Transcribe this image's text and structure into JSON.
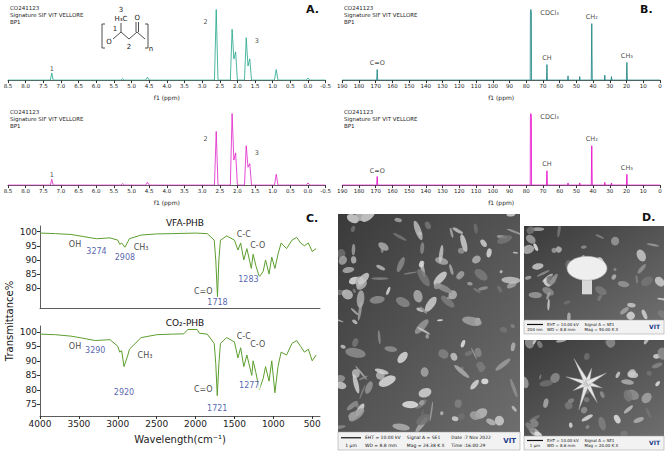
{
  "chart_data": [
    {
      "type": "line",
      "panel_label": "A.",
      "header": [
        "CO241123",
        "Signature SIF VIT VELLORE",
        "BP1"
      ],
      "structure": {
        "numbering": [
          "3",
          "1",
          "2"
        ],
        "atoms": [
          "H₃C",
          "O",
          "O"
        ],
        "repeat": "n"
      },
      "x": [
        8.5,
        7.3,
        7.26,
        7.22,
        5.3,
        5.25,
        5.2,
        4.6,
        4.55,
        4.5,
        2.65,
        2.6,
        2.55,
        2.2,
        2.15,
        2.1,
        2.05,
        2.0,
        1.8,
        1.75,
        1.7,
        1.65,
        1.6,
        0.95,
        0.9,
        0.85,
        0.05,
        0.0,
        -0.05,
        -0.5
      ],
      "values": [
        0,
        0,
        10,
        0,
        0,
        2,
        0,
        0,
        4,
        0,
        0,
        100,
        0,
        0,
        72,
        30,
        40,
        0,
        0,
        60,
        20,
        30,
        0,
        0,
        15,
        0,
        0,
        3,
        0,
        0
      ],
      "color": "#1fa58a",
      "xlabel": "f1 (ppm)",
      "xlim": [
        8.5,
        -0.5
      ],
      "xticks": [
        8.5,
        {
          "value": 8,
          "label": "8.0"
        },
        7.5,
        {
          "value": 7,
          "label": "7.0"
        },
        6.5,
        {
          "value": 6,
          "label": "6.0"
        },
        5.5,
        {
          "value": 5,
          "label": "5.0"
        },
        4.5,
        {
          "value": 4,
          "label": "4.0"
        },
        3.5,
        {
          "value": 3,
          "label": "3.0"
        },
        2.5,
        {
          "value": 2,
          "label": "2.0"
        },
        1.5,
        {
          "value": 1,
          "label": "1.0"
        },
        0.5,
        {
          "value": 0,
          "label": "0.0"
        },
        -0.5
      ],
      "ylim": [
        0,
        105
      ],
      "tick_labels": "x",
      "grid": false,
      "annotations": [
        {
          "text": "1",
          "x": 7.26,
          "y": 16
        },
        {
          "text": "2",
          "x": 2.9,
          "y": 82
        },
        {
          "text": "3",
          "x": 1.45,
          "y": 55
        }
      ]
    },
    {
      "type": "line",
      "header": [
        "CO241123",
        "Signature SIF VIT VELLORE",
        "BP1"
      ],
      "x": [
        8.5,
        7.3,
        7.26,
        7.22,
        5.3,
        5.25,
        5.2,
        4.6,
        4.55,
        4.5,
        2.65,
        2.6,
        2.55,
        2.2,
        2.15,
        2.1,
        2.05,
        2.0,
        1.8,
        1.75,
        1.7,
        1.65,
        1.6,
        0.95,
        0.9,
        0.85,
        0.05,
        0.0,
        -0.05,
        -0.5
      ],
      "values": [
        0,
        0,
        8,
        0,
        0,
        2,
        0,
        0,
        4,
        0,
        0,
        75,
        0,
        0,
        100,
        35,
        45,
        0,
        0,
        55,
        25,
        30,
        0,
        0,
        15,
        0,
        0,
        3,
        0,
        0
      ],
      "color": "#e020c8",
      "xlabel": "f1 (ppm)",
      "xlim": [
        8.5,
        -0.5
      ],
      "xticks": [
        8.5,
        {
          "value": 8,
          "label": "8.0"
        },
        7.5,
        {
          "value": 7,
          "label": "7.0"
        },
        6.5,
        {
          "value": 6,
          "label": "6.0"
        },
        5.5,
        {
          "value": 5,
          "label": "5.0"
        },
        4.5,
        {
          "value": 4,
          "label": "4.0"
        },
        3.5,
        {
          "value": 3,
          "label": "3.0"
        },
        2.5,
        {
          "value": 2,
          "label": "2.0"
        },
        1.5,
        {
          "value": 1,
          "label": "1.0"
        },
        0.5,
        {
          "value": 0,
          "label": "0.0"
        },
        -0.5
      ],
      "ylim": [
        0,
        105
      ],
      "tick_labels": "x",
      "grid": false,
      "annotations": [
        {
          "text": "1",
          "x": 7.26,
          "y": 14
        },
        {
          "text": "2",
          "x": 2.9,
          "y": 65
        },
        {
          "text": "3",
          "x": 1.45,
          "y": 45
        }
      ]
    },
    {
      "type": "line",
      "panel_label": "B.",
      "header": [
        "CO241123",
        "Signature SIF VIT VELLORE",
        "BP1"
      ],
      "x": [
        190,
        169.4,
        169.1,
        168.8,
        77.6,
        77.5,
        77.2,
        76.9,
        76.8,
        67.9,
        67.6,
        67.3,
        55.2,
        55,
        54.8,
        48.2,
        48,
        47.8,
        41.1,
        40.8,
        40.5,
        33.2,
        33,
        32.8,
        29.2,
        29,
        28.8,
        20.1,
        19.8,
        19.5,
        0
      ],
      "values": [
        0,
        0,
        15,
        0,
        0,
        95,
        100,
        95,
        0,
        0,
        22,
        0,
        0,
        6,
        0,
        0,
        5,
        0,
        0,
        80,
        0,
        0,
        7,
        0,
        0,
        5,
        0,
        0,
        25,
        0,
        0
      ],
      "color": "#127f7f",
      "xlabel": "f1 (ppm)",
      "xlim": [
        190,
        0
      ],
      "xticks": [
        190,
        180,
        170,
        160,
        150,
        140,
        130,
        120,
        110,
        100,
        90,
        80,
        70,
        60,
        50,
        40,
        30,
        20,
        10,
        0
      ],
      "ylim": [
        0,
        105
      ],
      "tick_labels": "x",
      "grid": false,
      "annotations": [
        {
          "text": "C=O",
          "x": 169.1,
          "y": 24
        },
        {
          "text": "CDCl₃",
          "x": 66,
          "y": 95
        },
        {
          "text": "CH",
          "x": 67.6,
          "y": 31
        },
        {
          "text": "CH₂",
          "x": 40.8,
          "y": 89
        },
        {
          "text": "CH₃",
          "x": 19.8,
          "y": 34
        }
      ]
    },
    {
      "type": "line",
      "header": [
        "CO241123",
        "Signature SIF VIT VELLORE",
        "BP1"
      ],
      "x": [
        190,
        169.4,
        169.1,
        168.8,
        77.6,
        77.5,
        77.2,
        76.9,
        76.8,
        67.9,
        67.6,
        67.3,
        55.2,
        55,
        54.8,
        48.2,
        48,
        47.8,
        41.1,
        40.8,
        40.5,
        33.2,
        33,
        32.8,
        29.2,
        29,
        28.8,
        20.1,
        19.8,
        19.5,
        0
      ],
      "values": [
        0,
        0,
        12,
        0,
        0,
        95,
        100,
        95,
        0,
        0,
        20,
        0,
        0,
        3,
        0,
        0,
        3,
        0,
        0,
        55,
        0,
        0,
        4,
        0,
        0,
        3,
        0,
        0,
        15,
        0,
        0
      ],
      "color": "#e600c8",
      "xlabel": "f1 (ppm)",
      "xlim": [
        190,
        0
      ],
      "xticks": [
        190,
        180,
        170,
        160,
        150,
        140,
        130,
        120,
        110,
        100,
        90,
        80,
        70,
        60,
        50,
        40,
        30,
        20,
        10,
        0
      ],
      "ylim": [
        0,
        105
      ],
      "tick_labels": "x",
      "grid": false,
      "annotations": [
        {
          "text": "C=O",
          "x": 169.1,
          "y": 20
        },
        {
          "text": "CDCl₃",
          "x": 66,
          "y": 95
        },
        {
          "text": "CH",
          "x": 67.6,
          "y": 29
        },
        {
          "text": "CH₂",
          "x": 40.8,
          "y": 64
        },
        {
          "text": "CH₃",
          "x": 19.8,
          "y": 24
        }
      ]
    },
    {
      "type": "line",
      "panel_label": "C.",
      "title": "VFA-PHB",
      "ylabel": "Transmittance%",
      "x": [
        4000,
        3800,
        3600,
        3450,
        3274,
        3100,
        3000,
        2975,
        2950,
        2908,
        2870,
        2850,
        2700,
        2500,
        2300,
        2000,
        1850,
        1760,
        1740,
        1718,
        1700,
        1680,
        1600,
        1500,
        1455,
        1420,
        1380,
        1340,
        1283,
        1260,
        1225,
        1180,
        1130,
        1100,
        1055,
        1020,
        980,
        940,
        900,
        830,
        760,
        700,
        650,
        600,
        550,
        500,
        450
      ],
      "values": [
        99.5,
        99.3,
        99,
        98.3,
        97.5,
        97.8,
        97,
        95.5,
        96,
        94.5,
        96.5,
        97.5,
        98.8,
        99.2,
        99.3,
        99.5,
        99.3,
        97,
        90,
        77,
        90,
        97,
        98.5,
        97,
        93.5,
        96,
        90,
        94,
        87,
        92,
        88,
        84,
        86,
        90,
        85,
        91,
        87,
        92,
        96,
        94,
        97,
        98,
        96,
        95,
        96,
        93,
        94
      ],
      "color": "#5c9e2e",
      "xlim": [
        4000,
        400
      ],
      "ylim": [
        73,
        102
      ],
      "yticks": [
        80,
        85,
        90,
        95,
        100
      ],
      "tick_labels": "y",
      "grid": false,
      "annotations": [
        {
          "text": "OH",
          "x": 3550,
          "y": 95.5
        },
        {
          "text": "3274",
          "x": 3274,
          "y": 93,
          "color": "#2a3a9a"
        },
        {
          "text": "CH₃",
          "x": 2700,
          "y": 94.5
        },
        {
          "text": "2908",
          "x": 2908,
          "y": 91,
          "color": "#2a3a9a"
        },
        {
          "text": "C=O",
          "x": 1900,
          "y": 79
        },
        {
          "text": "1718",
          "x": 1718,
          "y": 74.8,
          "color": "#2a3a9a"
        },
        {
          "text": "C-C",
          "x": 1380,
          "y": 99
        },
        {
          "text": "C-O",
          "x": 1200,
          "y": 95
        },
        {
          "text": "1283",
          "x": 1320,
          "y": 83,
          "color": "#2a3a9a"
        }
      ]
    },
    {
      "type": "line",
      "title": "CO₂-PHB",
      "xlabel": "Wavelength(cm⁻¹)",
      "x": [
        4000,
        3800,
        3600,
        3450,
        3290,
        3100,
        3000,
        2975,
        2950,
        2920,
        2870,
        2850,
        2700,
        2500,
        2300,
        2150,
        2100,
        1980,
        1950,
        1850,
        1760,
        1740,
        1721,
        1700,
        1680,
        1600,
        1500,
        1455,
        1420,
        1380,
        1340,
        1277,
        1260,
        1225,
        1180,
        1130,
        1100,
        1055,
        1020,
        980,
        940,
        900,
        830,
        760,
        700,
        650,
        600,
        550,
        500,
        450
      ],
      "values": [
        99.2,
        99,
        98.5,
        97.8,
        97,
        97.3,
        95,
        93,
        93.5,
        88,
        92,
        94,
        98,
        99,
        99.2,
        99.3,
        100.8,
        100.8,
        99.5,
        99.2,
        96,
        89,
        78,
        89,
        96,
        98,
        96.5,
        91,
        94.5,
        88,
        92,
        85,
        90,
        86,
        80,
        84,
        88,
        83,
        90,
        79,
        88,
        93,
        92,
        96,
        97,
        95,
        93,
        94,
        90,
        92
      ],
      "color": "#5c9e2e",
      "xlim": [
        4000,
        400
      ],
      "xticks": [
        4000,
        3500,
        3000,
        2500,
        2000,
        1500,
        1000,
        500
      ],
      "ylim": [
        71,
        102
      ],
      "yticks": [
        75,
        80,
        85,
        90,
        95,
        100
      ],
      "grid": false,
      "annotations": [
        {
          "text": "OH",
          "x": 3550,
          "y": 95
        },
        {
          "text": "3290",
          "x": 3290,
          "y": 93.5,
          "color": "#2a3a9a"
        },
        {
          "text": "CH₃",
          "x": 2650,
          "y": 92
        },
        {
          "text": "2920",
          "x": 2920,
          "y": 79,
          "color": "#2a3a9a"
        },
        {
          "text": "C=O",
          "x": 1900,
          "y": 80
        },
        {
          "text": "1721",
          "x": 1721,
          "y": 73.5,
          "color": "#2a3a9a"
        },
        {
          "text": "C-C",
          "x": 1380,
          "y": 98.5
        },
        {
          "text": "C-O",
          "x": 1200,
          "y": 95.5
        },
        {
          "text": "1277",
          "x": 1310,
          "y": 81.5,
          "color": "#2a3a9a"
        }
      ]
    }
  ],
  "sem_panel": {
    "panel_label": "D.",
    "images": [
      {
        "scale_bar": "1 μm",
        "info": [
          [
            "EHT = 10.00 kV",
            "WD = 8.8 mm"
          ],
          [
            "Signal A = SE1",
            "Mag = 24.38 K X"
          ],
          [
            "Date :7 Nov 2022",
            "Time :16:00:29"
          ]
        ],
        "logo": "VIT"
      },
      {
        "scale_bar": "200 nm",
        "info": [
          [
            "EHT = 10.00 kV",
            "WD = 8.8 mm"
          ],
          [
            "Signal A = SE1",
            "Mag = 50.00 K X"
          ]
        ],
        "logo": "VIT"
      },
      {
        "scale_bar": "1 μm",
        "info": [
          [
            "EHT = 10.00 kV",
            "WD = 8.6 mm"
          ],
          [
            "Signal A = SE1",
            "Mag = 20.00 K X"
          ]
        ],
        "logo": "VIT"
      }
    ]
  }
}
